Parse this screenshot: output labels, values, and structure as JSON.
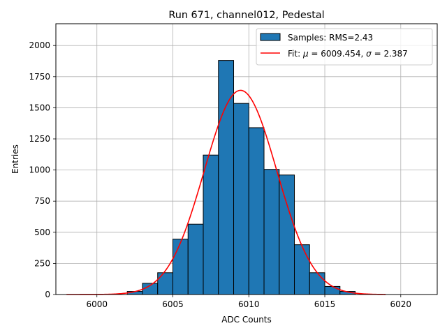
{
  "chart_data": {
    "type": "bar",
    "title": "Run 671, channel012, Pedestal",
    "xlabel": "ADC Counts",
    "ylabel": "Entries",
    "xlim": [
      5997.3,
      6022.4
    ],
    "ylim": [
      0,
      2175
    ],
    "xticks": [
      6000,
      6005,
      6010,
      6015,
      6020
    ],
    "yticks": [
      0,
      250,
      500,
      750,
      1000,
      1250,
      1500,
      1750,
      2000
    ],
    "grid": true,
    "legend_position": "top-right",
    "bin_width": 1,
    "histogram": {
      "name": "Samples: RMS=2.43",
      "color": "#1f77b4",
      "edgecolor": "#000000",
      "bins": [
        {
          "left": 6002,
          "count": 25
        },
        {
          "left": 6003,
          "count": 90
        },
        {
          "left": 6004,
          "count": 175
        },
        {
          "left": 6005,
          "count": 445
        },
        {
          "left": 6006,
          "count": 565
        },
        {
          "left": 6007,
          "count": 1120
        },
        {
          "left": 6008,
          "count": 1880
        },
        {
          "left": 6009,
          "count": 1535
        },
        {
          "left": 6010,
          "count": 1340
        },
        {
          "left": 6011,
          "count": 1005
        },
        {
          "left": 6012,
          "count": 960
        },
        {
          "left": 6013,
          "count": 400
        },
        {
          "left": 6014,
          "count": 175
        },
        {
          "left": 6015,
          "count": 65
        },
        {
          "left": 6016,
          "count": 25
        }
      ]
    },
    "fit": {
      "legend_label": "Fit: μ = 6009.454, σ = 2.387",
      "label_prefix": "Fit: ",
      "mu_symbol": "μ",
      "mu_text": " = 6009.454, ",
      "sigma_symbol": "σ",
      "sigma_text": " = 2.387",
      "color": "#ff0000",
      "mu": 6009.454,
      "sigma": 2.387,
      "amplitude": 1640,
      "x_range": [
        5998,
        6019
      ]
    }
  }
}
